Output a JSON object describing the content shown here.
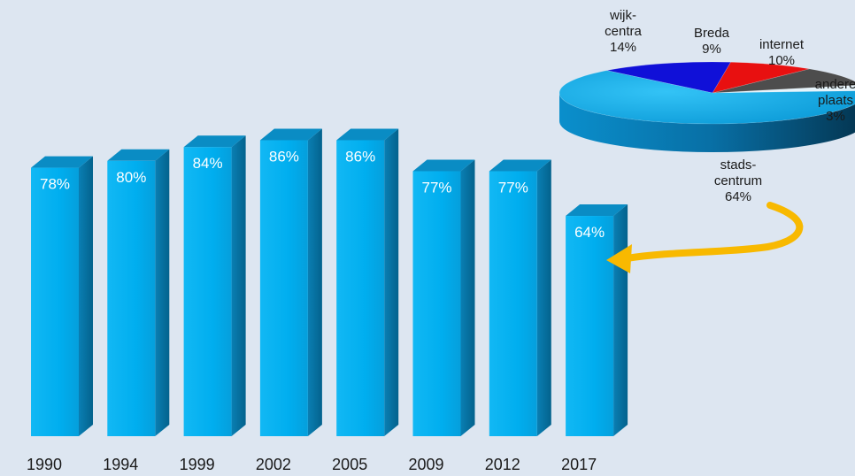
{
  "chart_data": [
    {
      "type": "bar",
      "categories": [
        "1990",
        "1994",
        "1999",
        "2002",
        "2005",
        "2009",
        "2012",
        "2017"
      ],
      "values": [
        78,
        80,
        84,
        86,
        86,
        77,
        77,
        64
      ],
      "value_labels": [
        "78%",
        "80%",
        "84%",
        "86%",
        "86%",
        "77%",
        "77%",
        "64%"
      ],
      "unit": "%",
      "ylim": [
        0,
        100
      ],
      "grid": false,
      "style": "3d"
    },
    {
      "type": "pie",
      "style": "3d",
      "slices": [
        {
          "label_lines": [
            "stads-",
            "centrum",
            "64%"
          ],
          "value": 64,
          "color": "#0aa8e6"
        },
        {
          "label_lines": [
            "wijk-",
            "centra",
            "14%"
          ],
          "value": 14,
          "color": "#1010d8"
        },
        {
          "label_lines": [
            "Breda",
            "9%"
          ],
          "value": 9,
          "color": "#e81010"
        },
        {
          "label_lines": [
            "internet",
            "10%"
          ],
          "value": 10,
          "color": "#4d4d4d"
        },
        {
          "label_lines": [
            "andere",
            "plaats",
            "3%"
          ],
          "value": 3,
          "color": "#e6f4fb"
        }
      ],
      "annotation": "arrow from stadscentrum 64% to 2017 bar"
    }
  ],
  "colors": {
    "background": "#dde6f1",
    "bar_front": "#00aeef",
    "bar_side": "#0075a6",
    "bar_top": "#0a8cc4",
    "arrow": "#f8b900"
  }
}
